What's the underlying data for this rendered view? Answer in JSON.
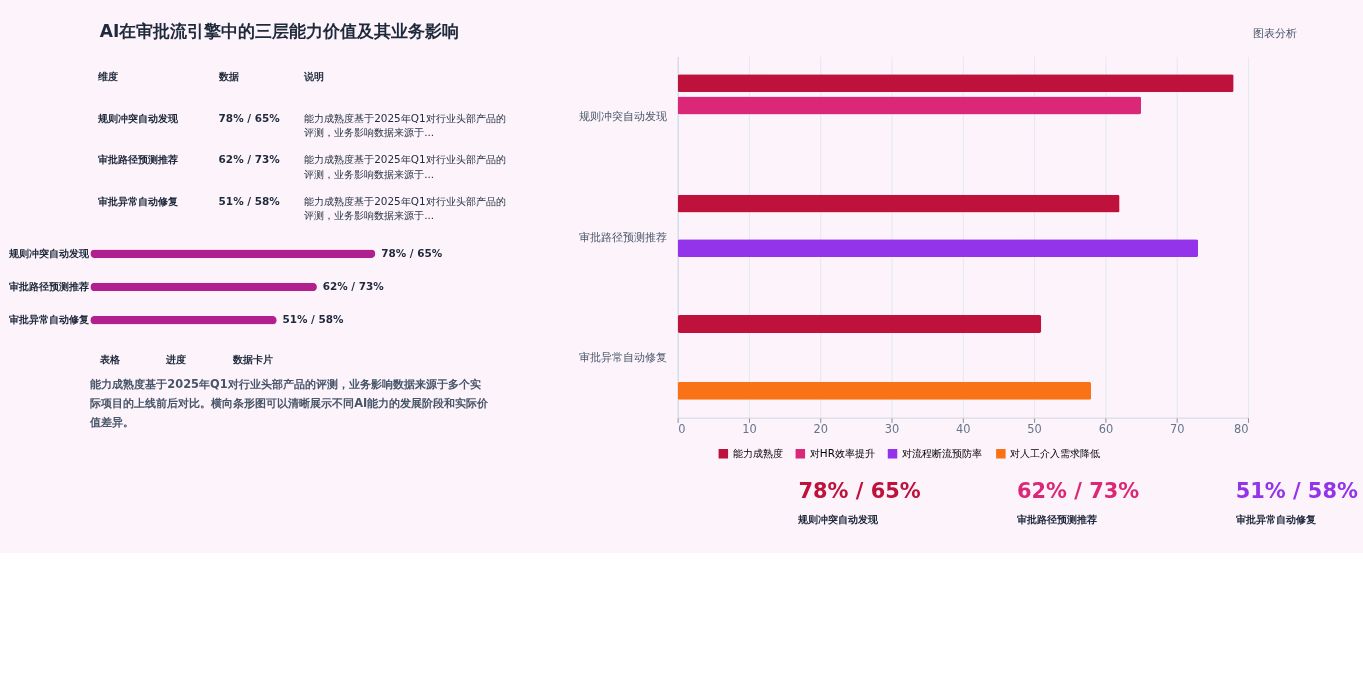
{
  "chart_data": [
    {
      "type": "other",
      "title": "AI在审批流引擎中的三层能力价值及其业务影响",
      "categories": [
        "规则冲突自动发现",
        "审批路径预测推荐",
        "审批异常自动修复"
      ],
      "value_labels": [
        "78% / 65%",
        "62% / 73%",
        "51% / 58%"
      ],
      "annotations": [
        "图表分析",
        "维度",
        "数据",
        "说明",
        "能力成熟度基于2025年Q1对行业头部产品的评测，业务影响数据来源于...",
        "能力成熟度基于2025年Q1对行业头部产品的评测，业务影响数据来源于...",
        "能力成熟度基于2025年Q1对行业头部产品的评测，业务影响数据来源于..."
      ]
    },
    {
      "type": "bar",
      "orientation": "horizontal",
      "categories": [
        "规则冲突自动发现",
        "审批路径预测推荐",
        "审批异常自动修复"
      ],
      "values": [
        78,
        62,
        51
      ],
      "color": "#b0208f",
      "value_labels": [
        "78% / 65%",
        "62% / 73%",
        "51% / 58%"
      ],
      "annotations": [
        "表格",
        "进度",
        "数据卡片",
        "能力成熟度基于2025年Q1对行业头部产品的评测，业务影响数据来源于多个实际项目的上线前后对比。横向条形图可以清晰展示不同AI能力的发展阶段和实际价值差异。"
      ]
    },
    {
      "type": "bar",
      "orientation": "horizontal",
      "categories": [
        "规则冲突自动发现",
        "审批路径预测推荐",
        "审批异常自动修复"
      ],
      "series": [
        {
          "name": "能力成熟度",
          "color": "#be123c",
          "values": [
            78,
            62,
            51
          ]
        },
        {
          "name": "对HR效率提升",
          "color": "#db2777",
          "values": [
            65,
            null,
            null
          ]
        },
        {
          "name": "对流程断流预防率",
          "color": "#9333ea",
          "values": [
            null,
            73,
            null
          ]
        },
        {
          "name": "对人工介入需求降低",
          "color": "#f97316",
          "values": [
            null,
            null,
            58
          ]
        }
      ],
      "xlim": [
        0,
        80
      ],
      "xticks": [
        0,
        10,
        20,
        30,
        40,
        50,
        60,
        70,
        80
      ],
      "grid": "x",
      "legend": "bottom"
    },
    {
      "type": "other",
      "categories": [
        "规则冲突自动发现",
        "审批路径预测推荐",
        "审批异常自动修复"
      ],
      "value_labels": [
        "78% / 65%",
        "62% / 73%",
        "51% / 58%"
      ],
      "colors": [
        "#be123c",
        "#db2777",
        "#9333ea"
      ]
    }
  ]
}
